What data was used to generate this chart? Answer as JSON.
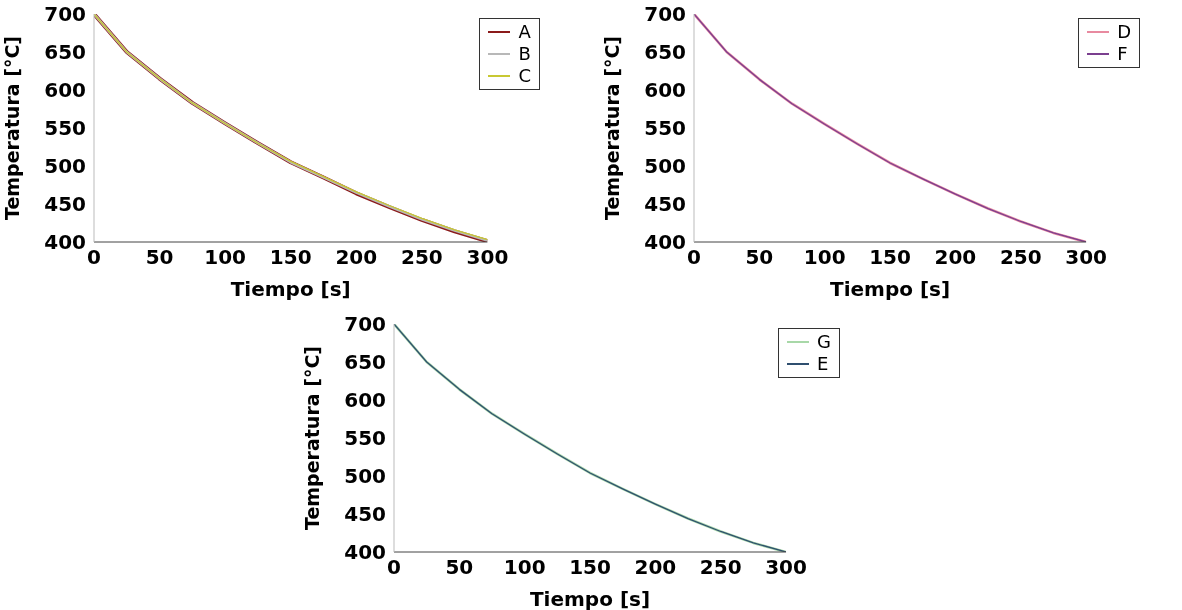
{
  "chart_data": [
    {
      "type": "line",
      "xlabel": "Tiempo [s]",
      "ylabel": "Temperatura [°C]",
      "x": [
        0,
        25,
        50,
        75,
        100,
        125,
        150,
        175,
        200,
        225,
        250,
        275,
        300
      ],
      "xlim": [
        0,
        300
      ],
      "xticks": [
        0,
        50,
        100,
        150,
        200,
        250,
        300
      ],
      "ylim": [
        400,
        700
      ],
      "yticks": [
        400,
        450,
        500,
        550,
        600,
        650,
        700
      ],
      "grid": false,
      "legend": "top right",
      "marker": "none",
      "line_style": "solid",
      "series": [
        {
          "name": "A",
          "color": "#8b1a1a",
          "values": [
            700,
            650,
            615,
            583,
            556,
            530,
            505,
            485,
            464,
            446,
            429,
            414,
            401
          ]
        },
        {
          "name": "B",
          "color": "#b8b8b8",
          "values": [
            700,
            650,
            615,
            583,
            556,
            530,
            505,
            485,
            465,
            447,
            430,
            415,
            402
          ]
        },
        {
          "name": "C",
          "color": "#c8c832",
          "values": [
            700,
            650,
            615,
            583,
            556,
            530,
            506,
            486,
            466,
            448,
            431,
            416,
            403
          ]
        }
      ]
    },
    {
      "type": "line",
      "xlabel": "Tiempo [s]",
      "ylabel": "Temperatura [°C]",
      "x": [
        0,
        25,
        50,
        75,
        100,
        125,
        150,
        175,
        200,
        225,
        250,
        275,
        300
      ],
      "xlim": [
        0,
        300
      ],
      "xticks": [
        0,
        50,
        100,
        150,
        200,
        250,
        300
      ],
      "ylim": [
        400,
        700
      ],
      "yticks": [
        400,
        450,
        500,
        550,
        600,
        650,
        700
      ],
      "grid": false,
      "legend": "top right",
      "marker": "none",
      "line_style": "solid",
      "series": [
        {
          "name": "D",
          "color": "#e88aa0",
          "values": [
            700,
            650,
            614,
            582,
            555,
            529,
            504,
            483,
            463,
            444,
            427,
            412,
            400
          ]
        },
        {
          "name": "F",
          "color": "#7b3f8f",
          "values": [
            700,
            650,
            614,
            582,
            555,
            529,
            504,
            483,
            463,
            444,
            427,
            412,
            400
          ]
        }
      ]
    },
    {
      "type": "line",
      "xlabel": "Tiempo [s]",
      "ylabel": "Temperatura [°C]",
      "x": [
        0,
        25,
        50,
        75,
        100,
        125,
        150,
        175,
        200,
        225,
        250,
        275,
        300
      ],
      "xlim": [
        0,
        300
      ],
      "xticks": [
        0,
        50,
        100,
        150,
        200,
        250,
        300
      ],
      "ylim": [
        400,
        700
      ],
      "yticks": [
        400,
        450,
        500,
        550,
        600,
        650,
        700
      ],
      "grid": false,
      "legend": "top right",
      "marker": "none",
      "line_style": "solid",
      "series": [
        {
          "name": "G",
          "color": "#a8d8a8",
          "values": [
            700,
            650,
            614,
            582,
            555,
            529,
            504,
            483,
            463,
            444,
            427,
            412,
            400
          ]
        },
        {
          "name": "E",
          "color": "#2f4f6f",
          "values": [
            700,
            650,
            614,
            582,
            555,
            529,
            504,
            483,
            463,
            444,
            427,
            412,
            400
          ]
        }
      ]
    }
  ]
}
